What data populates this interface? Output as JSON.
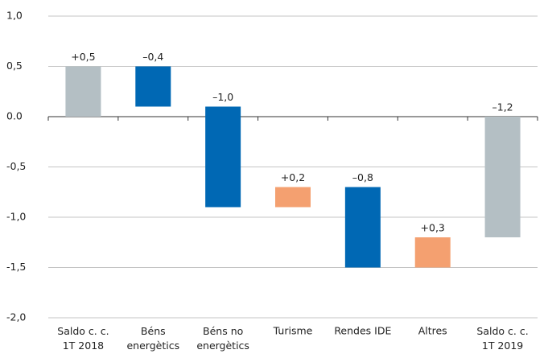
{
  "chart_data": {
    "type": "waterfall",
    "categories": [
      "Saldo c. c.\n1T 2018",
      "Béns\nenergètics",
      "Béns no\nenergètics",
      "Turisme",
      "Rendes IDE",
      "Altres",
      "Saldo c. c.\n1T 2019"
    ],
    "values": [
      0.5,
      -0.4,
      -1.0,
      0.2,
      -0.8,
      0.3,
      -1.2
    ],
    "value_labels": [
      "+0,5",
      "–0,4",
      "–1,0",
      "+0,2",
      "–0,8",
      "+0,3",
      "–1,2"
    ],
    "colors": [
      "#b4bfc4",
      "#0068b4",
      "#0068b4",
      "#f4a070",
      "#0068b4",
      "#f4a070",
      "#b4bfc4"
    ],
    "totals": [
      0,
      6
    ],
    "ylim": [
      -2.0,
      1.0
    ],
    "yticks": [
      {
        "value": -2.0,
        "label": "-2,0"
      },
      {
        "value": -1.5,
        "label": "-1,5"
      },
      {
        "value": -1.0,
        "label": "-1,0"
      },
      {
        "value": -0.5,
        "label": "-0,5"
      },
      {
        "value": 0,
        "label": "0.0"
      },
      {
        "value": 0.5,
        "label": "0,5"
      },
      {
        "value": 1.0,
        "label": "1,0"
      }
    ],
    "grid": true
  }
}
